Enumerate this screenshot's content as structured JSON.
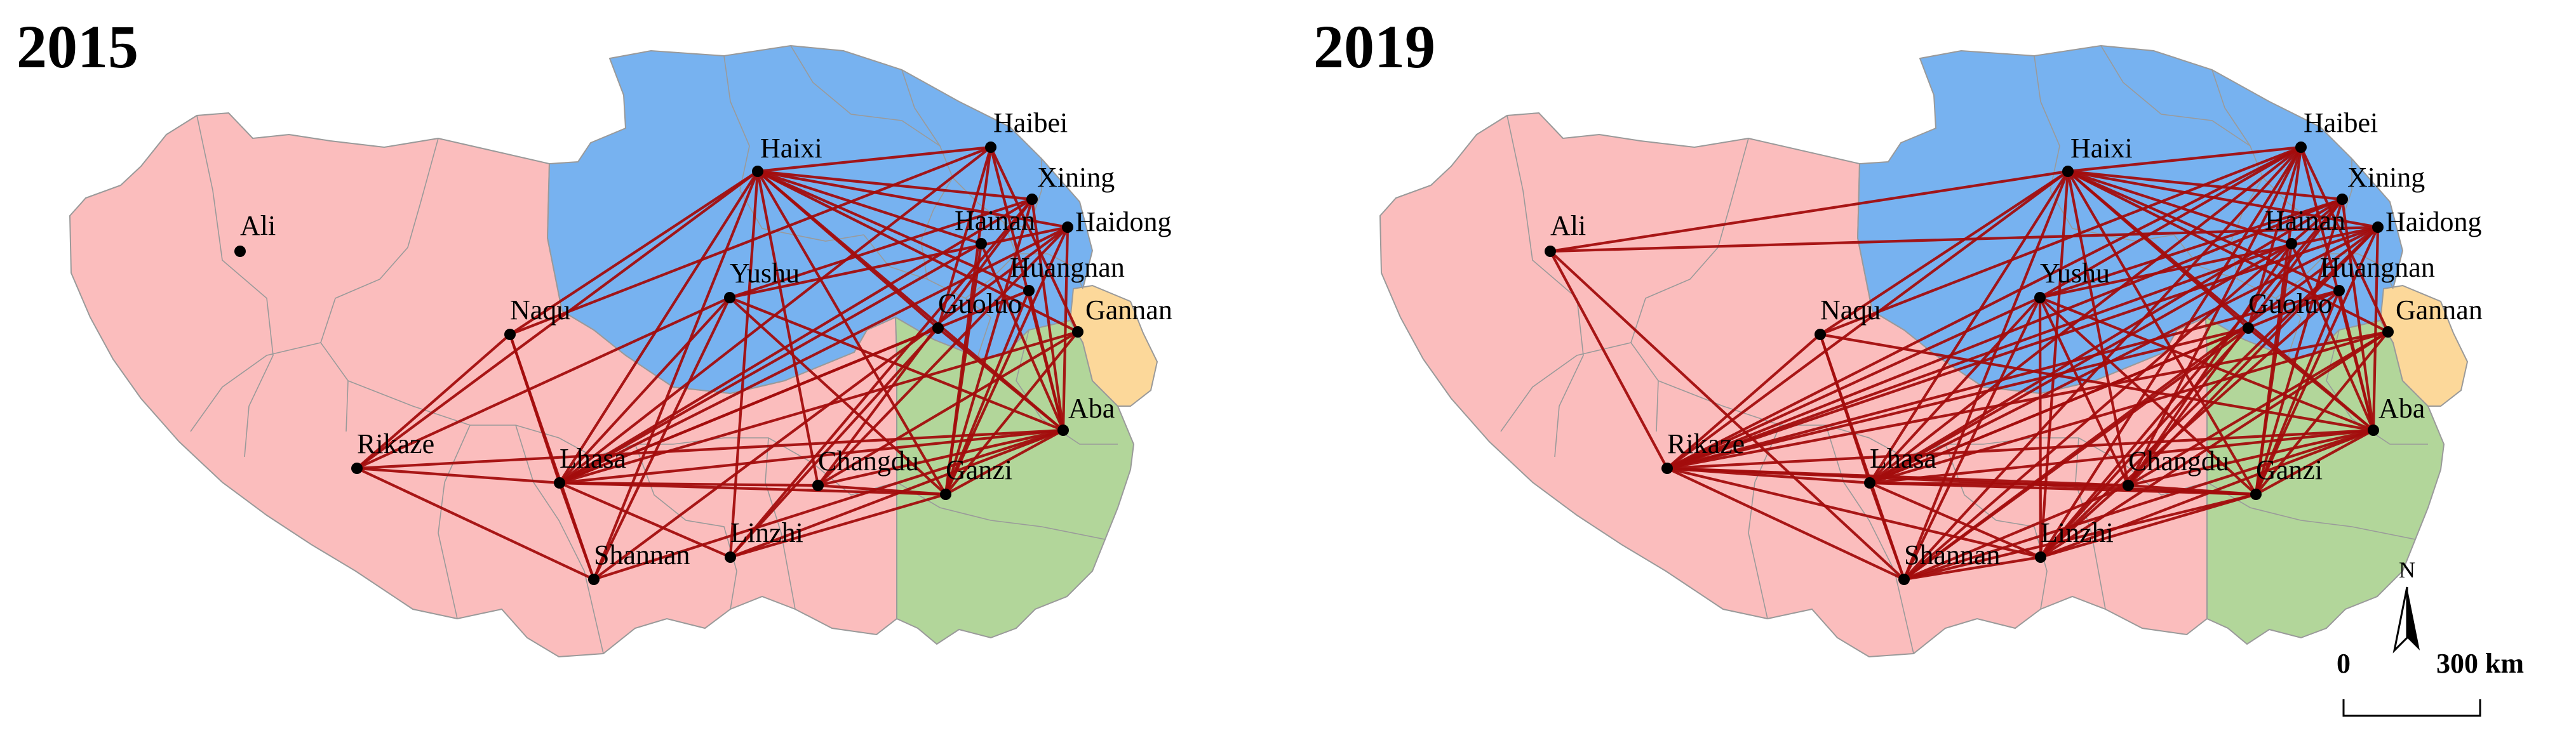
{
  "panels": [
    {
      "title": "2015"
    },
    {
      "title": "2019"
    }
  ],
  "cities": [
    {
      "id": "Ali",
      "label": "Ali"
    },
    {
      "id": "Haixi",
      "label": "Haixi"
    },
    {
      "id": "Haibei",
      "label": "Haibei"
    },
    {
      "id": "Xining",
      "label": "Xining"
    },
    {
      "id": "Hainan",
      "label": "Hainan"
    },
    {
      "id": "Haidong",
      "label": "Haidong"
    },
    {
      "id": "Huangnan",
      "label": "Huangnan"
    },
    {
      "id": "Yushu",
      "label": "Yushu"
    },
    {
      "id": "Guoluo",
      "label": "Guoluo"
    },
    {
      "id": "Gannan",
      "label": "Gannan"
    },
    {
      "id": "Naqu",
      "label": "Naqu"
    },
    {
      "id": "Aba",
      "label": "Aba"
    },
    {
      "id": "Rikaze",
      "label": "Rikaze"
    },
    {
      "id": "Lhasa",
      "label": "Lhasa"
    },
    {
      "id": "Changdu",
      "label": "Changdu"
    },
    {
      "id": "Ganzi",
      "label": "Ganzi"
    },
    {
      "id": "Linzhi",
      "label": "Linzhi"
    },
    {
      "id": "Shannan",
      "label": "Shannan"
    }
  ],
  "links_2015": [
    [
      "Haixi",
      "Haibei"
    ],
    [
      "Haixi",
      "Xining"
    ],
    [
      "Haixi",
      "Hainan"
    ],
    [
      "Haixi",
      "Haidong"
    ],
    [
      "Haixi",
      "Huangnan"
    ],
    [
      "Haixi",
      "Guoluo"
    ],
    [
      "Haixi",
      "Gannan"
    ],
    [
      "Haixi",
      "Aba"
    ],
    [
      "Haixi",
      "Ganzi"
    ],
    [
      "Haixi",
      "Naqu"
    ],
    [
      "Haixi",
      "Rikaze"
    ],
    [
      "Haixi",
      "Lhasa"
    ],
    [
      "Haixi",
      "Changdu"
    ],
    [
      "Haixi",
      "Linzhi"
    ],
    [
      "Haixi",
      "Shannan"
    ],
    [
      "Haibei",
      "Lhasa"
    ],
    [
      "Haibei",
      "Naqu"
    ],
    [
      "Haibei",
      "Guoluo"
    ],
    [
      "Haibei",
      "Ganzi"
    ],
    [
      "Haibei",
      "Aba"
    ],
    [
      "Haibei",
      "Gannan"
    ],
    [
      "Xining",
      "Lhasa"
    ],
    [
      "Xining",
      "Ganzi"
    ],
    [
      "Xining",
      "Changdu"
    ],
    [
      "Xining",
      "Linzhi"
    ],
    [
      "Xining",
      "Yushu"
    ],
    [
      "Xining",
      "Aba"
    ],
    [
      "Haidong",
      "Lhasa"
    ],
    [
      "Haidong",
      "Ganzi"
    ],
    [
      "Haidong",
      "Changdu"
    ],
    [
      "Haidong",
      "Shannan"
    ],
    [
      "Haidong",
      "Aba"
    ],
    [
      "Haidong",
      "Yushu"
    ],
    [
      "Hainan",
      "Ganzi"
    ],
    [
      "Hainan",
      "Aba"
    ],
    [
      "Hainan",
      "Lhasa"
    ],
    [
      "Huangnan",
      "Lhasa"
    ],
    [
      "Huangnan",
      "Ganzi"
    ],
    [
      "Huangnan",
      "Aba"
    ],
    [
      "Gannan",
      "Ganzi"
    ],
    [
      "Gannan",
      "Changdu"
    ],
    [
      "Gannan",
      "Lhasa"
    ],
    [
      "Aba",
      "Lhasa"
    ],
    [
      "Aba",
      "Rikaze"
    ],
    [
      "Aba",
      "Changdu"
    ],
    [
      "Aba",
      "Linzhi"
    ],
    [
      "Aba",
      "Shannan"
    ],
    [
      "Aba",
      "Ganzi"
    ],
    [
      "Aba",
      "Guoluo"
    ],
    [
      "Aba",
      "Yushu"
    ],
    [
      "Ganzi",
      "Yushu"
    ],
    [
      "Ganzi",
      "Changdu"
    ],
    [
      "Ganzi",
      "Linzhi"
    ],
    [
      "Ganzi",
      "Lhasa"
    ],
    [
      "Yushu",
      "Rikaze"
    ],
    [
      "Yushu",
      "Lhasa"
    ],
    [
      "Yushu",
      "Shannan"
    ],
    [
      "Rikaze",
      "Lhasa"
    ],
    [
      "Rikaze",
      "Naqu"
    ],
    [
      "Rikaze",
      "Shannan"
    ],
    [
      "Lhasa",
      "Shannan"
    ],
    [
      "Lhasa",
      "Changdu"
    ],
    [
      "Lhasa",
      "Linzhi"
    ],
    [
      "Lhasa",
      "Naqu"
    ],
    [
      "Naqu",
      "Shannan"
    ],
    [
      "Guoluo",
      "Lhasa"
    ],
    [
      "Guoluo",
      "Linzhi"
    ]
  ],
  "links_2019": [
    [
      "Haixi",
      "Haibei"
    ],
    [
      "Haixi",
      "Xining"
    ],
    [
      "Haixi",
      "Hainan"
    ],
    [
      "Haixi",
      "Haidong"
    ],
    [
      "Haixi",
      "Huangnan"
    ],
    [
      "Haixi",
      "Guoluo"
    ],
    [
      "Haixi",
      "Gannan"
    ],
    [
      "Haixi",
      "Aba"
    ],
    [
      "Haixi",
      "Ganzi"
    ],
    [
      "Haixi",
      "Naqu"
    ],
    [
      "Haixi",
      "Rikaze"
    ],
    [
      "Haixi",
      "Lhasa"
    ],
    [
      "Haixi",
      "Changdu"
    ],
    [
      "Haixi",
      "Linzhi"
    ],
    [
      "Haixi",
      "Shannan"
    ],
    [
      "Haixi",
      "Ali"
    ],
    [
      "Haibei",
      "Lhasa"
    ],
    [
      "Haibei",
      "Naqu"
    ],
    [
      "Haibei",
      "Guoluo"
    ],
    [
      "Haibei",
      "Ganzi"
    ],
    [
      "Haibei",
      "Aba"
    ],
    [
      "Haibei",
      "Gannan"
    ],
    [
      "Haibei",
      "Rikaze"
    ],
    [
      "Haibei",
      "Changdu"
    ],
    [
      "Haibei",
      "Linzhi"
    ],
    [
      "Haibei",
      "Yushu"
    ],
    [
      "Haibei",
      "Shannan"
    ],
    [
      "Xining",
      "Lhasa"
    ],
    [
      "Xining",
      "Ganzi"
    ],
    [
      "Xining",
      "Changdu"
    ],
    [
      "Xining",
      "Linzhi"
    ],
    [
      "Xining",
      "Yushu"
    ],
    [
      "Xining",
      "Aba"
    ],
    [
      "Xining",
      "Rikaze"
    ],
    [
      "Xining",
      "Shannan"
    ],
    [
      "Haidong",
      "Lhasa"
    ],
    [
      "Haidong",
      "Ganzi"
    ],
    [
      "Haidong",
      "Changdu"
    ],
    [
      "Haidong",
      "Shannan"
    ],
    [
      "Haidong",
      "Aba"
    ],
    [
      "Haidong",
      "Yushu"
    ],
    [
      "Haidong",
      "Rikaze"
    ],
    [
      "Haidong",
      "Ali"
    ],
    [
      "Haidong",
      "Linzhi"
    ],
    [
      "Hainan",
      "Ganzi"
    ],
    [
      "Hainan",
      "Aba"
    ],
    [
      "Hainan",
      "Lhasa"
    ],
    [
      "Hainan",
      "Rikaze"
    ],
    [
      "Hainan",
      "Changdu"
    ],
    [
      "Huangnan",
      "Lhasa"
    ],
    [
      "Huangnan",
      "Ganzi"
    ],
    [
      "Huangnan",
      "Aba"
    ],
    [
      "Huangnan",
      "Rikaze"
    ],
    [
      "Huangnan",
      "Linzhi"
    ],
    [
      "Gannan",
      "Ganzi"
    ],
    [
      "Gannan",
      "Changdu"
    ],
    [
      "Gannan",
      "Lhasa"
    ],
    [
      "Gannan",
      "Rikaze"
    ],
    [
      "Gannan",
      "Linzhi"
    ],
    [
      "Aba",
      "Lhasa"
    ],
    [
      "Aba",
      "Rikaze"
    ],
    [
      "Aba",
      "Changdu"
    ],
    [
      "Aba",
      "Linzhi"
    ],
    [
      "Aba",
      "Shannan"
    ],
    [
      "Aba",
      "Ganzi"
    ],
    [
      "Aba",
      "Guoluo"
    ],
    [
      "Aba",
      "Yushu"
    ],
    [
      "Aba",
      "Naqu"
    ],
    [
      "Ganzi",
      "Yushu"
    ],
    [
      "Ganzi",
      "Changdu"
    ],
    [
      "Ganzi",
      "Linzhi"
    ],
    [
      "Ganzi",
      "Lhasa"
    ],
    [
      "Ganzi",
      "Rikaze"
    ],
    [
      "Ganzi",
      "Shannan"
    ],
    [
      "Yushu",
      "Rikaze"
    ],
    [
      "Yushu",
      "Lhasa"
    ],
    [
      "Yushu",
      "Shannan"
    ],
    [
      "Yushu",
      "Changdu"
    ],
    [
      "Yushu",
      "Linzhi"
    ],
    [
      "Rikaze",
      "Lhasa"
    ],
    [
      "Rikaze",
      "Naqu"
    ],
    [
      "Rikaze",
      "Shannan"
    ],
    [
      "Rikaze",
      "Ali"
    ],
    [
      "Rikaze",
      "Changdu"
    ],
    [
      "Rikaze",
      "Linzhi"
    ],
    [
      "Lhasa",
      "Shannan"
    ],
    [
      "Lhasa",
      "Changdu"
    ],
    [
      "Lhasa",
      "Linzhi"
    ],
    [
      "Lhasa",
      "Naqu"
    ],
    [
      "Naqu",
      "Shannan"
    ],
    [
      "Guoluo",
      "Lhasa"
    ],
    [
      "Guoluo",
      "Linzhi"
    ],
    [
      "Guoluo",
      "Rikaze"
    ],
    [
      "Guoluo",
      "Shannan"
    ],
    [
      "Shannan",
      "Changdu"
    ],
    [
      "Shannan",
      "Linzhi"
    ],
    [
      "Ali",
      "Shannan"
    ]
  ],
  "region_colors": {
    "tibet": "#fbbdbd",
    "qinghai": "#77b2f0",
    "sichuan": "#b2d69a",
    "gansu": "#fcd89a",
    "boundary": "#9a9a9a",
    "link": "#a30d0d",
    "node": "#000000"
  },
  "compass": {
    "label": "N"
  },
  "scalebar": {
    "zero_label": "0",
    "distance_label": "300 km"
  }
}
